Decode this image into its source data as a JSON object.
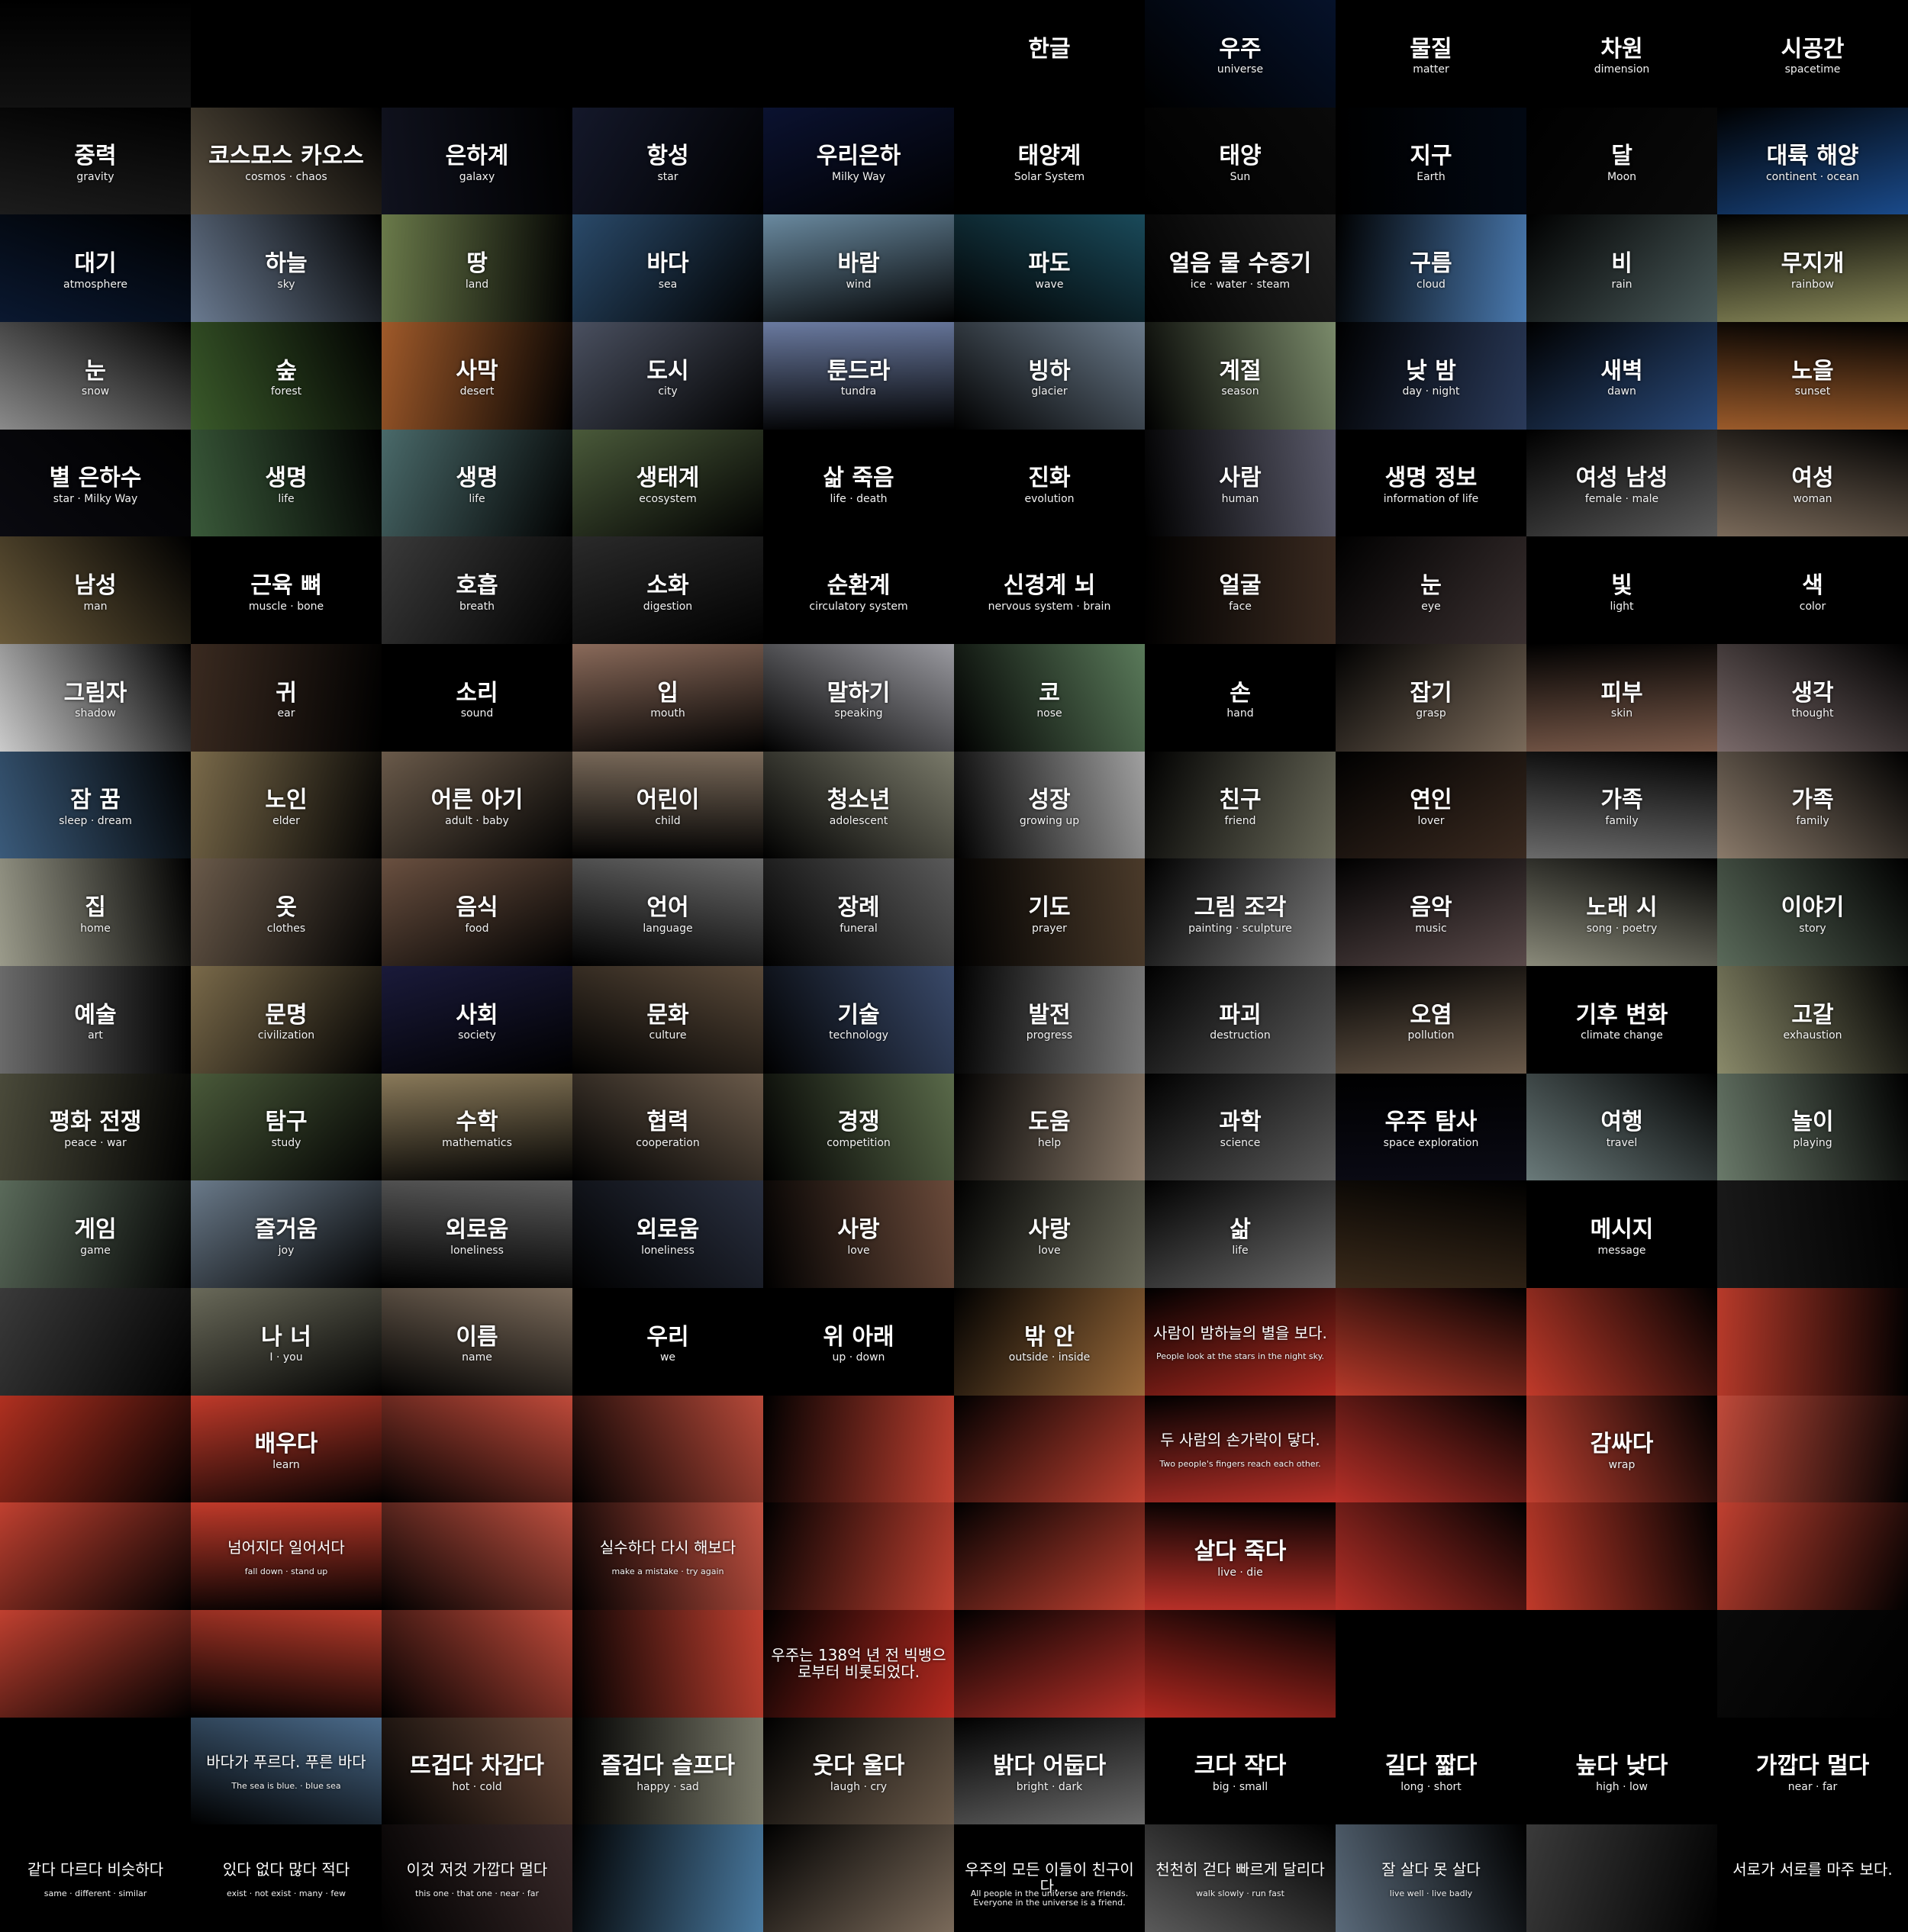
{
  "palette": [
    "#3a4a6b",
    "#6b4a2a",
    "#2f5a3a",
    "#5a6b7a",
    "#7a5a3a",
    "#2a3a5a",
    "#4a3a2a",
    "#5a4a5a",
    "#3a5a6a",
    "#6a5a4a"
  ],
  "red_tint": "#c8281e",
  "tiles": [
    {
      "bg": "#111111"
    },
    {
      "bg": "#000000"
    },
    {
      "bg": "#000000"
    },
    {
      "bg": "#000000"
    },
    {
      "bg": "#000000"
    },
    {
      "bg": "#000000",
      "ko": "한글"
    },
    {
      "bg": "#06122a",
      "ko": "우주",
      "en": "universe"
    },
    {
      "bg": "#000000",
      "ko": "물질",
      "en": "matter"
    },
    {
      "bg": "#000000",
      "ko": "차원",
      "en": "dimension"
    },
    {
      "bg": "#000000",
      "ko": "시공간",
      "en": "spacetime"
    },
    {
      "bg": "#1c1c1c",
      "ko": "중력",
      "en": "gravity"
    },
    {
      "bg": "#5a5040",
      "ko": "코스모스 카오스",
      "en": "cosmos · chaos"
    },
    {
      "bg": "#10121e",
      "ko": "은하계",
      "en": "galaxy"
    },
    {
      "bg": "#14182a",
      "ko": "항성",
      "en": "star"
    },
    {
      "bg": "#0b1230",
      "ko": "우리은하",
      "en": "Milky Way"
    },
    {
      "bg": "#000000",
      "ko": "태양계",
      "en": "Solar System"
    },
    {
      "bg": "#0a0a0a",
      "ko": "태양",
      "en": "Sun"
    },
    {
      "bg": "#020812",
      "ko": "지구",
      "en": "Earth"
    },
    {
      "bg": "#0a0a0a",
      "ko": "달",
      "en": "Moon"
    },
    {
      "bg": "#1a4a8a",
      "ko": "대륙 해양",
      "en": "continent · ocean"
    },
    {
      "bg": "#0a1830",
      "ko": "대기",
      "en": "atmosphere"
    },
    {
      "bg": "#6a7a90",
      "ko": "하늘",
      "en": "sky"
    },
    {
      "bg": "#6a7a4a",
      "ko": "땅",
      "en": "land"
    },
    {
      "bg": "#2a4a6a",
      "ko": "바다",
      "en": "sea"
    },
    {
      "bg": "#6a8aa0",
      "ko": "바람",
      "en": "wind"
    },
    {
      "bg": "#1a4a5a",
      "ko": "파도",
      "en": "wave"
    },
    {
      "bg": "#202020",
      "ko": "얼음 물 수증기",
      "en": "ice · water · steam"
    },
    {
      "bg": "#4a7ab0",
      "ko": "구름",
      "en": "cloud"
    },
    {
      "bg": "#4a5a5a",
      "ko": "비",
      "en": "rain"
    },
    {
      "bg": "#8a8a5a",
      "ko": "무지개",
      "en": "rainbow"
    },
    {
      "bg": "#8a8a8a",
      "ko": "눈",
      "en": "snow"
    },
    {
      "bg": "#3a5a2a",
      "ko": "숲",
      "en": "forest"
    },
    {
      "bg": "#a05a2a",
      "ko": "사막",
      "en": "desert"
    },
    {
      "bg": "#4a5060",
      "ko": "도시",
      "en": "city"
    },
    {
      "bg": "#6a7aa0",
      "ko": "툰드라",
      "en": "tundra"
    },
    {
      "bg": "#6a7a8a",
      "ko": "빙하",
      "en": "glacier"
    },
    {
      "bg": "#7a8a6a",
      "ko": "계절",
      "en": "season"
    },
    {
      "bg": "#2a3a5a",
      "ko": "낮 밤",
      "en": "day · night"
    },
    {
      "bg": "#2a4a7a",
      "ko": "새벽",
      "en": "dawn"
    },
    {
      "bg": "#9a5a2a",
      "ko": "노을",
      "en": "sunset"
    },
    {
      "bg": "#0a0a10",
      "ko": "별 은하수",
      "en": "star · Milky Way"
    },
    {
      "bg": "#3a5a3a",
      "ko": "생명",
      "en": "life"
    },
    {
      "bg": "#4a6a6a",
      "ko": "생명",
      "en": "life"
    },
    {
      "bg": "#4a5a3a",
      "ko": "생태계",
      "en": "ecosystem"
    },
    {
      "bg": "#000000",
      "ko": "삶 죽음",
      "en": "life · death"
    },
    {
      "bg": "#000000",
      "ko": "진화",
      "en": "evolution"
    },
    {
      "bg": "#5a5a6a",
      "ko": "사람",
      "en": "human"
    },
    {
      "bg": "#000000",
      "ko": "생명 정보",
      "en": "information of life"
    },
    {
      "bg": "#5a5a5a",
      "ko": "여성 남성",
      "en": "female · male"
    },
    {
      "bg": "#7a6a5a",
      "ko": "여성",
      "en": "woman"
    },
    {
      "bg": "#6a5a3a",
      "ko": "남성",
      "en": "man"
    },
    {
      "bg": "#000000",
      "ko": "근육 뼈",
      "en": "muscle · bone"
    },
    {
      "bg": "#3a3a3a",
      "ko": "호흡",
      "en": "breath"
    },
    {
      "bg": "#2a2a2a",
      "ko": "소화",
      "en": "digestion"
    },
    {
      "bg": "#000000",
      "ko": "순환계",
      "en": "circulatory system"
    },
    {
      "bg": "#000000",
      "ko": "신경계 뇌",
      "en": "nervous system · brain"
    },
    {
      "bg": "#3a2a20",
      "ko": "얼굴",
      "en": "face"
    },
    {
      "bg": "#3a3030",
      "ko": "눈",
      "en": "eye"
    },
    {
      "bg": "#000000",
      "ko": "빛",
      "en": "light"
    },
    {
      "bg": "#000000",
      "ko": "색",
      "en": "color"
    },
    {
      "bg": "#cacaca",
      "ko": "그림자",
      "en": "shadow"
    },
    {
      "bg": "#3a2a20",
      "ko": "귀",
      "en": "ear"
    },
    {
      "bg": "#000000",
      "ko": "소리",
      "en": "sound"
    },
    {
      "bg": "#8a6a5a",
      "ko": "입",
      "en": "mouth"
    },
    {
      "bg": "#9a9aa0",
      "ko": "말하기",
      "en": "speaking"
    },
    {
      "bg": "#5a7a5a",
      "ko": "코",
      "en": "nose"
    },
    {
      "bg": "#000000",
      "ko": "손",
      "en": "hand"
    },
    {
      "bg": "#7a6a5a",
      "ko": "잡기",
      "en": "grasp"
    },
    {
      "bg": "#7a5a4a",
      "ko": "피부",
      "en": "skin"
    },
    {
      "bg": "#7a6a6a",
      "ko": "생각",
      "en": "thought"
    },
    {
      "bg": "#3a5a7a",
      "ko": "잠 꿈",
      "en": "sleep · dream"
    },
    {
      "bg": "#7a6a4a",
      "ko": "노인",
      "en": "elder"
    },
    {
      "bg": "#6a5a4a",
      "ko": "어른 아기",
      "en": "adult · baby"
    },
    {
      "bg": "#7a6a5a",
      "ko": "어린이",
      "en": "child"
    },
    {
      "bg": "#7a7a6a",
      "ko": "청소년",
      "en": "adolescent"
    },
    {
      "bg": "#a0a0a0",
      "ko": "성장",
      "en": "growing up"
    },
    {
      "bg": "#6a6a5a",
      "ko": "친구",
      "en": "friend"
    },
    {
      "bg": "#3a2a20",
      "ko": "연인",
      "en": "lover"
    },
    {
      "bg": "#6a6a6a",
      "ko": "가족",
      "en": "family"
    },
    {
      "bg": "#8a7a6a",
      "ko": "가족",
      "en": "family"
    },
    {
      "bg": "#9a9a8a",
      "ko": "집",
      "en": "home"
    },
    {
      "bg": "#6a5a4a",
      "ko": "옷",
      "en": "clothes"
    },
    {
      "bg": "#6a5040",
      "ko": "음식",
      "en": "food"
    },
    {
      "bg": "#6a6a6a",
      "ko": "언어",
      "en": "language"
    },
    {
      "bg": "#5a5a5a",
      "ko": "장례",
      "en": "funeral"
    },
    {
      "bg": "#4a3a2a",
      "ko": "기도",
      "en": "prayer"
    },
    {
      "bg": "#7a7a7a",
      "ko": "그림 조각",
      "en": "painting · sculpture"
    },
    {
      "bg": "#5a4a4a",
      "ko": "음악",
      "en": "music"
    },
    {
      "bg": "#8a8a7a",
      "ko": "노래 시",
      "en": "song · poetry"
    },
    {
      "bg": "#5a6a5a",
      "ko": "이야기",
      "en": "story"
    },
    {
      "bg": "#6a6a6a",
      "ko": "예술",
      "en": "art"
    },
    {
      "bg": "#7a6a4a",
      "ko": "문명",
      "en": "civilization"
    },
    {
      "bg": "#1a1a3a",
      "ko": "사회",
      "en": "society"
    },
    {
      "bg": "#5a4a3a",
      "ko": "문화",
      "en": "culture"
    },
    {
      "bg": "#3a4a6a",
      "ko": "기술",
      "en": "technology"
    },
    {
      "bg": "#7a7a7a",
      "ko": "발전",
      "en": "progress"
    },
    {
      "bg": "#5a5a5a",
      "ko": "파괴",
      "en": "destruction"
    },
    {
      "bg": "#6a5a4a",
      "ko": "오염",
      "en": "pollution"
    },
    {
      "bg": "#000000",
      "ko": "기후 변화",
      "en": "climate change"
    },
    {
      "bg": "#8a8a6a",
      "ko": "고갈",
      "en": "exhaustion"
    },
    {
      "bg": "#4a4a3a",
      "ko": "평화 전쟁",
      "en": "peace · war"
    },
    {
      "bg": "#4a5a3a",
      "ko": "탐구",
      "en": "study"
    },
    {
      "bg": "#8a7a5a",
      "ko": "수학",
      "en": "mathematics"
    },
    {
      "bg": "#6a5a4a",
      "ko": "협력",
      "en": "cooperation"
    },
    {
      "bg": "#5a6a4a",
      "ko": "경쟁",
      "en": "competition"
    },
    {
      "bg": "#8a7a6a",
      "ko": "도움",
      "en": "help"
    },
    {
      "bg": "#5a5a5a",
      "ko": "과학",
      "en": "science"
    },
    {
      "bg": "#0a0a14",
      "ko": "우주 탐사",
      "en": "space exploration"
    },
    {
      "bg": "#6a7a7a",
      "ko": "여행",
      "en": "travel"
    },
    {
      "bg": "#6a7a6a",
      "ko": "놀이",
      "en": "playing"
    },
    {
      "bg": "#5a6a5a",
      "ko": "게임",
      "en": "game"
    },
    {
      "bg": "#6a7a8a",
      "ko": "즐거움",
      "en": "joy"
    },
    {
      "bg": "#5a5a5a",
      "ko": "외로움",
      "en": "loneliness"
    },
    {
      "bg": "#2a3040",
      "ko": "외로움",
      "en": "loneliness"
    },
    {
      "bg": "#6a4a3a",
      "ko": "사랑",
      "en": "love"
    },
    {
      "bg": "#6a6a5a",
      "ko": "사랑",
      "en": "love"
    },
    {
      "bg": "#6a6a6a",
      "ko": "삶",
      "en": "life"
    },
    {
      "bg": "#3a2a1a",
      "ko": "",
      "en": ""
    },
    {
      "bg": "#000000",
      "ko": "메시지",
      "en": "message"
    },
    {
      "bg": "#1a1a1a",
      "ko": "",
      "en": ""
    },
    {
      "bg": "#3a3a3a",
      "ko": "",
      "en": ""
    },
    {
      "bg": "#6a6a5a",
      "ko": "나 너",
      "en": "I · you"
    },
    {
      "bg": "#7a6a5a",
      "ko": "이름",
      "en": "name"
    },
    {
      "bg": "#000000",
      "ko": "우리",
      "en": "we"
    },
    {
      "bg": "#000000",
      "ko": "위 아래",
      "en": "up · down"
    },
    {
      "bg": "#9a6a3a",
      "ko": "밖 안",
      "en": "outside · inside"
    },
    {
      "bg": "#b02a20",
      "ko": "사람이 밤하늘의 별을 보다.",
      "en": "People look at the stars in the night sky.",
      "long": true
    },
    {
      "bg": "#b83a2a",
      "ko": "",
      "en": ""
    },
    {
      "bg": "#c03a2a",
      "ko": "",
      "en": ""
    },
    {
      "bg": "#b83a2a",
      "ko": "",
      "en": ""
    },
    {
      "bg": "#b03020",
      "ko": "",
      "en": ""
    },
    {
      "bg": "#c03a2a",
      "ko": "배우다",
      "en": "learn"
    },
    {
      "bg": "#c04a3a",
      "ko": "",
      "en": ""
    },
    {
      "bg": "#b84a3a",
      "ko": "",
      "en": ""
    },
    {
      "bg": "#c04030",
      "ko": "",
      "en": ""
    },
    {
      "bg": "#c04030",
      "ko": "",
      "en": ""
    },
    {
      "bg": "#b83028",
      "ko": "두 사람의 손가락이 닿다.",
      "en": "Two people's fingers reach each other.",
      "long": true
    },
    {
      "bg": "#b83028",
      "ko": "",
      "en": ""
    },
    {
      "bg": "#c04030",
      "ko": "감싸다",
      "en": "wrap"
    },
    {
      "bg": "#c04a3a",
      "ko": "",
      "en": ""
    },
    {
      "bg": "#c04030",
      "ko": "",
      "en": ""
    },
    {
      "bg": "#c03a2a",
      "ko": "넘어지다 일어서다",
      "en": "fall down · stand up",
      "long": true
    },
    {
      "bg": "#c05040",
      "ko": "",
      "en": ""
    },
    {
      "bg": "#c05040",
      "ko": "실수하다 다시 해보다",
      "en": "make a mistake · try again",
      "long": true
    },
    {
      "bg": "#c04030",
      "ko": "",
      "en": ""
    },
    {
      "bg": "#c04030",
      "ko": "",
      "en": ""
    },
    {
      "bg": "#b83028",
      "ko": "살다 죽다",
      "en": "live · die"
    },
    {
      "bg": "#b83028",
      "ko": "",
      "en": ""
    },
    {
      "bg": "#c03a2a",
      "ko": "",
      "en": ""
    },
    {
      "bg": "#c04030",
      "ko": "",
      "en": ""
    },
    {
      "bg": "#c04030",
      "ko": "",
      "en": ""
    },
    {
      "bg": "#b83a2a",
      "ko": "",
      "en": ""
    },
    {
      "bg": "#c04a3a",
      "ko": "",
      "en": ""
    },
    {
      "bg": "#c04030",
      "ko": "",
      "en": ""
    },
    {
      "bg": "#b82a20",
      "ko": "우주는 138억 년 전 빅뱅으로부터 비롯되었다.",
      "en": "",
      "long": true
    },
    {
      "bg": "#b83028",
      "ko": "",
      "en": ""
    },
    {
      "bg": "#b02820",
      "ko": "",
      "en": ""
    },
    {
      "bg": "#000000",
      "ko": "",
      "en": ""
    },
    {
      "bg": "#000000",
      "ko": "",
      "en": ""
    },
    {
      "bg": "#0a0a0a",
      "ko": "",
      "en": ""
    },
    {
      "bg": "#000000",
      "ko": "",
      "en": ""
    },
    {
      "bg": "#4a6a8a",
      "ko": "바다가 푸르다. 푸른 바다",
      "en": "The sea is blue. · blue sea",
      "long": true
    },
    {
      "bg": "#6a4a3a",
      "ko": "뜨겁다 차갑다",
      "en": "hot · cold"
    },
    {
      "bg": "#7a7a6a",
      "ko": "즐겁다 슬프다",
      "en": "happy · sad"
    },
    {
      "bg": "#6a5a4a",
      "ko": "웃다 울다",
      "en": "laugh · cry"
    },
    {
      "bg": "#6a6a6a",
      "ko": "밝다 어둡다",
      "en": "bright · dark"
    },
    {
      "bg": "#000000",
      "ko": "크다 작다",
      "en": "big · small"
    },
    {
      "bg": "#000000",
      "ko": "길다 짧다",
      "en": "long · short"
    },
    {
      "bg": "#000000",
      "ko": "높다 낮다",
      "en": "high · low"
    },
    {
      "bg": "#000000",
      "ko": "가깝다 멀다",
      "en": "near · far"
    },
    {
      "bg": "#000000",
      "ko": "같다 다르다 비슷하다",
      "en": "same · different · similar",
      "long": true
    },
    {
      "bg": "#000000",
      "ko": "있다 없다 많다 적다",
      "en": "exist · not exist · many · few",
      "long": true
    },
    {
      "bg": "#3a2a2a",
      "ko": "이것 저것 가깝다 멀다",
      "en": "this one · that one · near · far",
      "long": true
    },
    {
      "bg": "#4a7aa0",
      "ko": "",
      "en": ""
    },
    {
      "bg": "#7a6a5a",
      "ko": "",
      "en": ""
    },
    {
      "bg": "#000000",
      "ko": "우주의 모든 이들이 친구이다.",
      "en": "All people in the universe are friends. Everyone in the universe is a friend.",
      "long": true
    },
    {
      "bg": "#5a5a5a",
      "ko": "천천히 걷다 빠르게 달리다",
      "en": "walk slowly · run fast",
      "long": true
    },
    {
      "bg": "#5a6a7a",
      "ko": "잘 살다 못 살다",
      "en": "live well · live badly",
      "long": true
    },
    {
      "bg": "#3a3a3a",
      "ko": "",
      "en": ""
    },
    {
      "bg": "#000000",
      "ko": "서로가 서로를 마주 보다.",
      "en": "",
      "long": true
    },
    {
      "bg": "#000000",
      "ko": "",
      "en": ""
    }
  ]
}
